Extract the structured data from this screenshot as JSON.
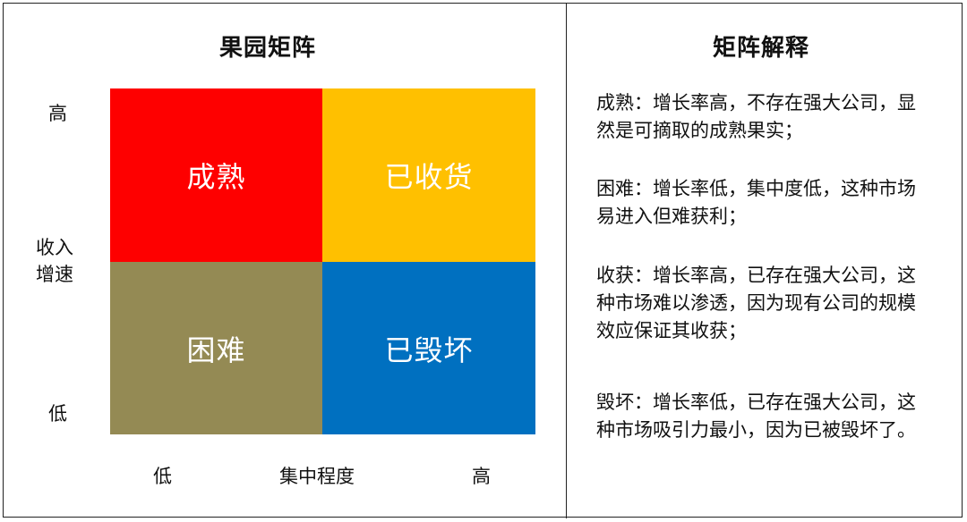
{
  "matrix": {
    "title": "果园矩阵",
    "y_axis": {
      "high": "高",
      "label": "收入增速",
      "low": "低"
    },
    "x_axis": {
      "low": "低",
      "label": "集中程度",
      "high": "高"
    },
    "quadrants": {
      "top_left": {
        "label": "成熟",
        "color": "#fe0000"
      },
      "top_right": {
        "label": "已收货",
        "color": "#ffc000"
      },
      "bottom_left": {
        "label": "困难",
        "color": "#948a54"
      },
      "bottom_right": {
        "label": "已毁坏",
        "color": "#0070c0"
      }
    }
  },
  "explanation": {
    "title": "矩阵解释",
    "items": [
      "成熟：增长率高，不存在强大公司，显然是可摘取的成熟果实；",
      "困难：增长率低，集中度低，这种市场易进入但难获利；",
      "收获：增长率高，已存在强大公司，这种市场难以渗透，因为现有公司的规模效应保证其收获；",
      "毁坏：增长率低，已存在强大公司，这种市场吸引力最小，因为已被毁坏了。"
    ]
  }
}
